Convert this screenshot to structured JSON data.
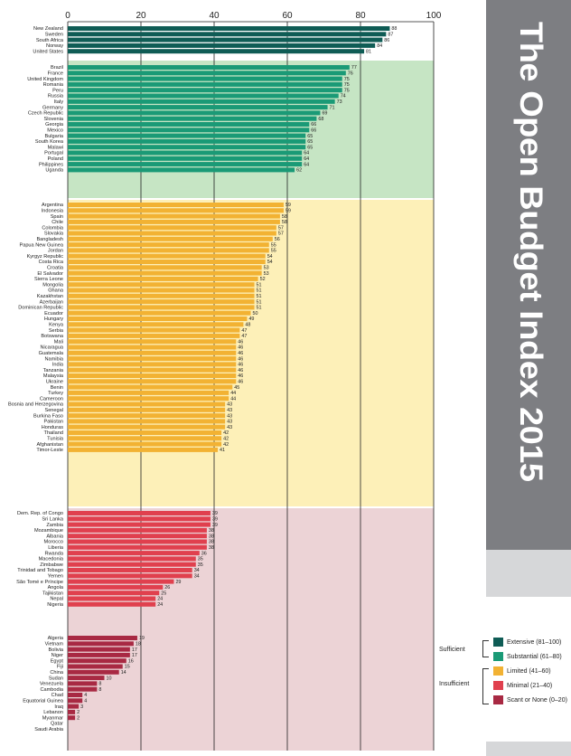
{
  "title": "The Open Budget Index 2015",
  "chart_data": {
    "type": "bar",
    "orientation": "horizontal",
    "xlim": [
      0,
      100
    ],
    "xticks": [
      0,
      20,
      40,
      60,
      80,
      100
    ],
    "grid": true,
    "legend_position": "bottom-right",
    "categories_legend": [
      {
        "label": "Extensive (81–100)",
        "color": "#0f5c55"
      },
      {
        "label": "Substantial (61–80)",
        "color": "#1a9a76"
      },
      {
        "label": "Limited (41–60)",
        "color": "#f2b233"
      },
      {
        "label": "Minimal (21–40)",
        "color": "#e0404e"
      },
      {
        "label": "Scant or None (0–20)",
        "color": "#a82943"
      }
    ],
    "legend_groups": [
      {
        "label": "Sufficient"
      },
      {
        "label": "Insufficient"
      }
    ],
    "groups": [
      {
        "band": "Extensive",
        "bar_color": "#0f5c55",
        "bg_color": "#c6e5c4",
        "items": [
          {
            "country": "New Zealand",
            "value": 88
          },
          {
            "country": "Sweden",
            "value": 87
          },
          {
            "country": "South Africa",
            "value": 86
          },
          {
            "country": "Norway",
            "value": 84
          },
          {
            "country": "United States",
            "value": 81
          }
        ]
      },
      {
        "band": "Substantial",
        "bar_color": "#1a9a76",
        "bg_color": "#c6e5c4",
        "items": [
          {
            "country": "Brazil",
            "value": 77
          },
          {
            "country": "France",
            "value": 76
          },
          {
            "country": "United Kingdom",
            "value": 75
          },
          {
            "country": "Romania",
            "value": 75
          },
          {
            "country": "Peru",
            "value": 75
          },
          {
            "country": "Russia",
            "value": 74
          },
          {
            "country": "Italy",
            "value": 73
          },
          {
            "country": "Germany",
            "value": 71
          },
          {
            "country": "Czech Republic",
            "value": 69
          },
          {
            "country": "Slovenia",
            "value": 68
          },
          {
            "country": "Georgia",
            "value": 66
          },
          {
            "country": "Mexico",
            "value": 66
          },
          {
            "country": "Bulgaria",
            "value": 65
          },
          {
            "country": "South Korea",
            "value": 65
          },
          {
            "country": "Malawi",
            "value": 65
          },
          {
            "country": "Portugal",
            "value": 64
          },
          {
            "country": "Poland",
            "value": 64
          },
          {
            "country": "Philippines",
            "value": 64
          },
          {
            "country": "Uganda",
            "value": 62
          }
        ]
      },
      {
        "band": "Limited",
        "bar_color": "#f2b233",
        "bg_color": "#fdf0b8",
        "items": [
          {
            "country": "Argentina",
            "value": 59
          },
          {
            "country": "Indonesia",
            "value": 59
          },
          {
            "country": "Spain",
            "value": 58
          },
          {
            "country": "Chile",
            "value": 58
          },
          {
            "country": "Colombia",
            "value": 57
          },
          {
            "country": "Slovakia",
            "value": 57
          },
          {
            "country": "Bangladesh",
            "value": 56
          },
          {
            "country": "Papua New Guinea",
            "value": 55
          },
          {
            "country": "Jordan",
            "value": 55
          },
          {
            "country": "Kyrgyz Republic",
            "value": 54
          },
          {
            "country": "Costa Rica",
            "value": 54
          },
          {
            "country": "Croatia",
            "value": 53
          },
          {
            "country": "El Salvador",
            "value": 53
          },
          {
            "country": "Sierra Leone",
            "value": 52
          },
          {
            "country": "Mongolia",
            "value": 51
          },
          {
            "country": "Ghana",
            "value": 51
          },
          {
            "country": "Kazakhstan",
            "value": 51
          },
          {
            "country": "Azerbaijan",
            "value": 51
          },
          {
            "country": "Dominican Republic",
            "value": 51
          },
          {
            "country": "Ecuador",
            "value": 50
          },
          {
            "country": "Hungary",
            "value": 49
          },
          {
            "country": "Kenya",
            "value": 48
          },
          {
            "country": "Serbia",
            "value": 47
          },
          {
            "country": "Botswana",
            "value": 47
          },
          {
            "country": "Mali",
            "value": 46
          },
          {
            "country": "Nicaragua",
            "value": 46
          },
          {
            "country": "Guatemala",
            "value": 46
          },
          {
            "country": "Namibia",
            "value": 46
          },
          {
            "country": "India",
            "value": 46
          },
          {
            "country": "Tanzania",
            "value": 46
          },
          {
            "country": "Malaysia",
            "value": 46
          },
          {
            "country": "Ukraine",
            "value": 46
          },
          {
            "country": "Benin",
            "value": 45
          },
          {
            "country": "Turkey",
            "value": 44
          },
          {
            "country": "Cameroon",
            "value": 44
          },
          {
            "country": "Bosnia and Herzegovina",
            "value": 43
          },
          {
            "country": "Senegal",
            "value": 43
          },
          {
            "country": "Burkina Faso",
            "value": 43
          },
          {
            "country": "Pakistan",
            "value": 43
          },
          {
            "country": "Honduras",
            "value": 43
          },
          {
            "country": "Thailand",
            "value": 42
          },
          {
            "country": "Tunisia",
            "value": 42
          },
          {
            "country": "Afghanistan",
            "value": 42
          },
          {
            "country": "Timor-Leste",
            "value": 41
          }
        ]
      },
      {
        "band": "Minimal",
        "bar_color": "#e0404e",
        "bg_color": "#ecd3d6",
        "items": [
          {
            "country": "Dem. Rep. of Congo",
            "value": 39
          },
          {
            "country": "Sri Lanka",
            "value": 39
          },
          {
            "country": "Zambia",
            "value": 39
          },
          {
            "country": "Mozambique",
            "value": 38
          },
          {
            "country": "Albania",
            "value": 38
          },
          {
            "country": "Morocco",
            "value": 38
          },
          {
            "country": "Liberia",
            "value": 38
          },
          {
            "country": "Rwanda",
            "value": 36
          },
          {
            "country": "Macedonia",
            "value": 35
          },
          {
            "country": "Zimbabwe",
            "value": 35
          },
          {
            "country": "Trinidad and Tobago",
            "value": 34
          },
          {
            "country": "Yemen",
            "value": 34
          },
          {
            "country": "São Tomé e Príncipe",
            "value": 29
          },
          {
            "country": "Angola",
            "value": 26
          },
          {
            "country": "Tajikistan",
            "value": 25
          },
          {
            "country": "Nepal",
            "value": 24
          },
          {
            "country": "Nigeria",
            "value": 24
          }
        ]
      },
      {
        "band": "Scant or None",
        "bar_color": "#a82943",
        "bg_color": "#ecd3d6",
        "items": [
          {
            "country": "Algeria",
            "value": 19
          },
          {
            "country": "Vietnam",
            "value": 18
          },
          {
            "country": "Bolivia",
            "value": 17
          },
          {
            "country": "Niger",
            "value": 17
          },
          {
            "country": "Egypt",
            "value": 16
          },
          {
            "country": "Fiji",
            "value": 15
          },
          {
            "country": "China",
            "value": 14
          },
          {
            "country": "Sudan",
            "value": 10
          },
          {
            "country": "Venezuela",
            "value": 8
          },
          {
            "country": "Cambodia",
            "value": 8
          },
          {
            "country": "Chad",
            "value": 4
          },
          {
            "country": "Equatorial Guinea",
            "value": 4
          },
          {
            "country": "Iraq",
            "value": 3
          },
          {
            "country": "Lebanon",
            "value": 2
          },
          {
            "country": "Myanmar",
            "value": 2
          },
          {
            "country": "Qatar",
            "value": 0
          },
          {
            "country": "Saudi Arabia",
            "value": 0
          }
        ]
      }
    ]
  }
}
